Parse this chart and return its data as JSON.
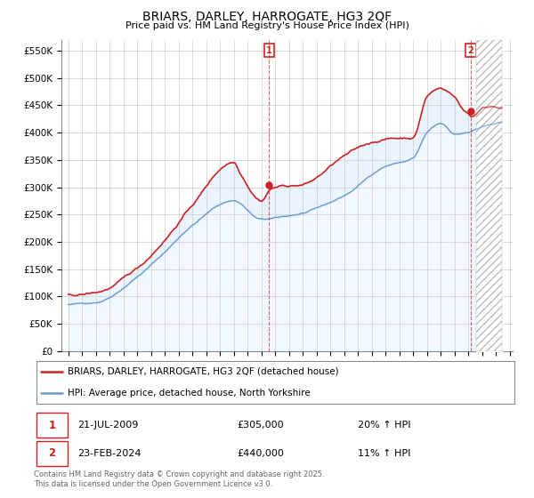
{
  "title": "BRIARS, DARLEY, HARROGATE, HG3 2QF",
  "subtitle": "Price paid vs. HM Land Registry's House Price Index (HPI)",
  "ylim": [
    0,
    570000
  ],
  "xlim_left": 1994.5,
  "xlim_right": 2027.2,
  "yticks": [
    0,
    50000,
    100000,
    150000,
    200000,
    250000,
    300000,
    350000,
    400000,
    450000,
    500000,
    550000
  ],
  "ytick_labels": [
    "£0",
    "£50K",
    "£100K",
    "£150K",
    "£200K",
    "£250K",
    "£300K",
    "£350K",
    "£400K",
    "£450K",
    "£500K",
    "£550K"
  ],
  "hpi_color": "#6699cc",
  "price_color": "#cc2222",
  "grid_color": "#cccccc",
  "bg_fill_color": "#ddeeff",
  "hatch_color": "#aaaaaa",
  "legend_label_price": "BRIARS, DARLEY, HARROGATE, HG3 2QF (detached house)",
  "legend_label_hpi": "HPI: Average price, detached house, North Yorkshire",
  "marker1_x": 2009.55,
  "marker1_y": 305000,
  "marker2_x": 2024.15,
  "marker2_y": 440000,
  "hatch_start_x": 2024.5,
  "footer_text": "Contains HM Land Registry data © Crown copyright and database right 2025.\nThis data is licensed under the Open Government Licence v3.0."
}
